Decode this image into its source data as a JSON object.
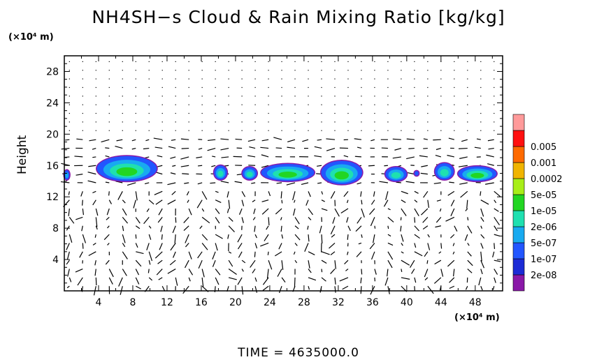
{
  "title": "NH4SH−s Cloud & Rain Mixing Ratio [kg/kg]",
  "y_unit": "(×10⁴ m)",
  "x_unit": "(×10⁴ m)",
  "ylabel": "Height",
  "time_label": "TIME  =  4635000.0",
  "chart_data": {
    "type": "heatmap",
    "title": "NH4SH−s Cloud & Rain Mixing Ratio [kg/kg]",
    "xlabel": "",
    "ylabel": "Height",
    "x_unit": "(×10⁴ m)",
    "y_unit": "(×10⁴ m)",
    "xlim": [
      0,
      51.2
    ],
    "ylim": [
      0,
      30
    ],
    "x_ticks": [
      4,
      8,
      12,
      16,
      20,
      24,
      28,
      32,
      36,
      40,
      44,
      48
    ],
    "y_ticks": [
      4,
      8,
      12,
      16,
      20,
      24,
      28
    ],
    "colorbar": {
      "levels": [
        "2e-08",
        "1e-07",
        "5e-07",
        "2e-06",
        "1e-05",
        "5e-05",
        "0.0002",
        "0.001",
        "0.005"
      ],
      "colors": [
        "#8a18a8",
        "#1c2bd6",
        "#2256ff",
        "#18aaf0",
        "#1fe0b0",
        "#22d622",
        "#a8ee18",
        "#f0b400",
        "#ff6a00",
        "#ff1010",
        "#ff9a9a"
      ]
    },
    "cloud_blobs": [
      {
        "x": [
          0.0,
          0.6
        ],
        "y": [
          14.2,
          15.4
        ],
        "level": 2
      },
      {
        "x": [
          3.8,
          10.8
        ],
        "y": [
          14.0,
          17.2
        ],
        "level": 4
      },
      {
        "x": [
          17.5,
          19.0
        ],
        "y": [
          14.2,
          16.0
        ],
        "level": 3
      },
      {
        "x": [
          20.8,
          22.5
        ],
        "y": [
          14.2,
          15.8
        ],
        "level": 3
      },
      {
        "x": [
          23.0,
          29.2
        ],
        "y": [
          14.0,
          16.2
        ],
        "level": 4
      },
      {
        "x": [
          30.0,
          34.8
        ],
        "y": [
          13.6,
          16.6
        ],
        "level": 4
      },
      {
        "x": [
          37.5,
          40.0
        ],
        "y": [
          14.0,
          15.8
        ],
        "level": 3
      },
      {
        "x": [
          40.9,
          41.4
        ],
        "y": [
          14.7,
          15.3
        ],
        "level": 1
      },
      {
        "x": [
          43.3,
          45.5
        ],
        "y": [
          14.2,
          16.3
        ],
        "level": 3
      },
      {
        "x": [
          46.0,
          50.5
        ],
        "y": [
          14.0,
          15.9
        ],
        "level": 4
      }
    ]
  }
}
